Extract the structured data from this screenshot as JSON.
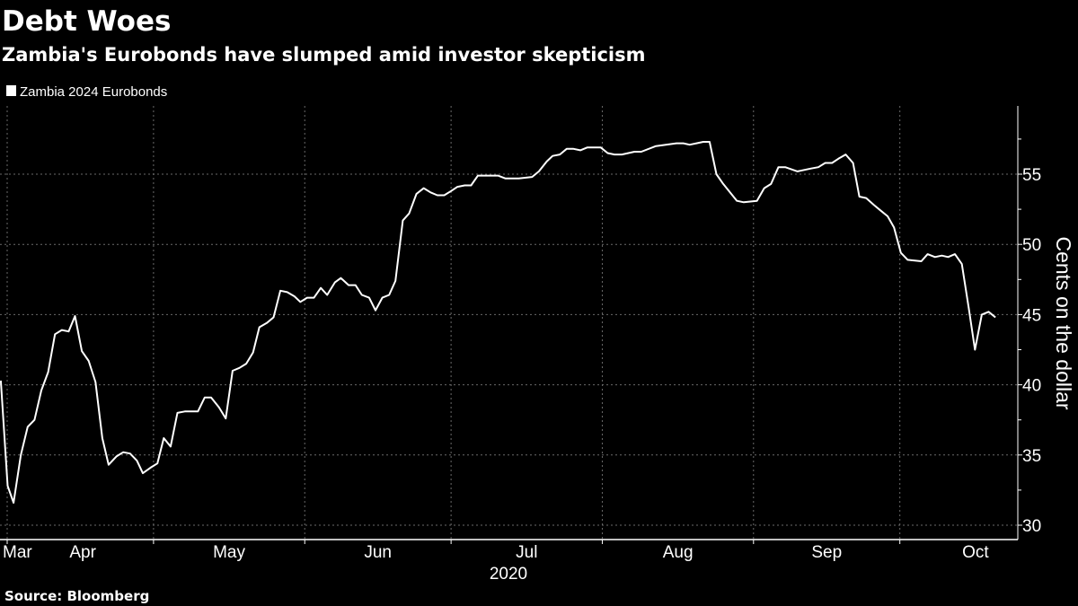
{
  "chart_data": {
    "type": "line",
    "title": "Debt Woes",
    "subtitle": "Zambia's Eurobonds have slumped amid investor skepticism",
    "legend": [
      "Zambia 2024 Eurobonds"
    ],
    "legend_position": "top-left",
    "ylabel": "Cents on the dollar",
    "xlabel": "2020",
    "ylim": [
      29,
      60
    ],
    "y_ticks": [
      30,
      35,
      40,
      45,
      50,
      55
    ],
    "y_minor_ticks": [
      32.5,
      37.5,
      42.5,
      47.5,
      52.5,
      57.5
    ],
    "grid": true,
    "x_unit_note_days_from_apr1": true,
    "x_ticks": [
      {
        "label": "Mar",
        "day": -14
      },
      {
        "label": "Apr",
        "day": 15.5
      },
      {
        "label": "May",
        "day": 45.5
      },
      {
        "label": "Jun",
        "day": 76
      },
      {
        "label": "Jul",
        "day": 106.5
      },
      {
        "label": "Aug",
        "day": 137.5
      },
      {
        "label": "Sep",
        "day": 168
      },
      {
        "label": "Oct",
        "day": 198.5
      }
    ],
    "month_boundaries": [
      0,
      30,
      61,
      91,
      122,
      153,
      183
    ],
    "series": [
      {
        "name": "Zambia 2024 Eurobonds",
        "color": "#ffffff",
        "points": [
          [
            -1.3,
            40.3
          ],
          [
            0.1,
            32.8
          ],
          [
            1.3,
            31.6
          ],
          [
            2.8,
            35.0
          ],
          [
            4.2,
            37.0
          ],
          [
            5.6,
            37.5
          ],
          [
            7.0,
            39.6
          ],
          [
            8.4,
            40.9
          ],
          [
            9.8,
            43.6
          ],
          [
            11.2,
            43.9
          ],
          [
            12.6,
            43.8
          ],
          [
            13.9,
            44.9
          ],
          [
            15.3,
            42.4
          ],
          [
            16.7,
            41.7
          ],
          [
            18.1,
            40.2
          ],
          [
            19.5,
            36.2
          ],
          [
            20.8,
            34.3
          ],
          [
            22.4,
            34.9
          ],
          [
            23.8,
            35.2
          ],
          [
            25.2,
            35.1
          ],
          [
            26.6,
            34.6
          ],
          [
            27.8,
            33.7
          ],
          [
            29.4,
            34.1
          ],
          [
            30.8,
            34.4
          ],
          [
            32.1,
            36.2
          ],
          [
            33.5,
            35.6
          ],
          [
            34.9,
            38.0
          ],
          [
            36.4,
            38.1
          ],
          [
            39.1,
            38.1
          ],
          [
            40.5,
            39.1
          ],
          [
            41.8,
            39.1
          ],
          [
            43.4,
            38.4
          ],
          [
            44.8,
            37.6
          ],
          [
            46.2,
            41.0
          ],
          [
            47.6,
            41.2
          ],
          [
            49.0,
            41.5
          ],
          [
            50.4,
            42.3
          ],
          [
            51.7,
            44.1
          ],
          [
            53.2,
            44.4
          ],
          [
            54.6,
            44.8
          ],
          [
            56.0,
            46.7
          ],
          [
            57.4,
            46.6
          ],
          [
            58.9,
            46.3
          ],
          [
            60.1,
            45.9
          ],
          [
            61.5,
            46.2
          ],
          [
            62.9,
            46.2
          ],
          [
            64.3,
            46.9
          ],
          [
            65.6,
            46.4
          ],
          [
            67.2,
            47.3
          ],
          [
            68.4,
            47.6
          ],
          [
            70.0,
            47.1
          ],
          [
            71.4,
            47.1
          ],
          [
            72.7,
            46.4
          ],
          [
            74.2,
            46.2
          ],
          [
            75.5,
            45.3
          ],
          [
            76.9,
            46.2
          ],
          [
            78.3,
            46.4
          ],
          [
            79.6,
            47.4
          ],
          [
            81.1,
            51.7
          ],
          [
            82.4,
            52.2
          ],
          [
            83.9,
            53.6
          ],
          [
            85.4,
            54.0
          ],
          [
            86.8,
            53.7
          ],
          [
            88.2,
            53.5
          ],
          [
            89.6,
            53.5
          ],
          [
            91.0,
            53.8
          ],
          [
            92.3,
            54.1
          ],
          [
            93.8,
            54.2
          ],
          [
            95.1,
            54.2
          ],
          [
            96.5,
            54.9
          ],
          [
            100.6,
            54.9
          ],
          [
            102.1,
            54.7
          ],
          [
            103.5,
            54.7
          ],
          [
            104.9,
            54.7
          ],
          [
            107.6,
            54.8
          ],
          [
            109.0,
            55.2
          ],
          [
            110.6,
            55.9
          ],
          [
            111.8,
            56.3
          ],
          [
            113.3,
            56.4
          ],
          [
            114.7,
            56.8
          ],
          [
            116.1,
            56.8
          ],
          [
            117.5,
            56.7
          ],
          [
            118.9,
            56.9
          ],
          [
            121.7,
            56.9
          ],
          [
            123.1,
            56.5
          ],
          [
            124.5,
            56.4
          ],
          [
            126.0,
            56.4
          ],
          [
            128.6,
            56.6
          ],
          [
            130.0,
            56.6
          ],
          [
            133.0,
            57.0
          ],
          [
            137.2,
            57.2
          ],
          [
            138.6,
            57.2
          ],
          [
            139.9,
            57.1
          ],
          [
            141.3,
            57.2
          ],
          [
            142.7,
            57.3
          ],
          [
            144.0,
            57.3
          ],
          [
            145.4,
            55.0
          ],
          [
            146.8,
            54.3
          ],
          [
            149.6,
            53.1
          ],
          [
            151.0,
            53.0
          ],
          [
            153.7,
            53.1
          ],
          [
            155.2,
            54.0
          ],
          [
            156.6,
            54.3
          ],
          [
            158.1,
            55.5
          ],
          [
            159.5,
            55.5
          ],
          [
            162.0,
            55.2
          ],
          [
            164.8,
            55.4
          ],
          [
            166.3,
            55.5
          ],
          [
            167.7,
            55.8
          ],
          [
            169.1,
            55.8
          ],
          [
            170.4,
            56.1
          ],
          [
            171.9,
            56.4
          ],
          [
            173.4,
            55.8
          ],
          [
            174.7,
            53.4
          ],
          [
            176.1,
            53.3
          ],
          [
            177.7,
            52.8
          ],
          [
            179.1,
            52.4
          ],
          [
            180.5,
            52.0
          ],
          [
            181.8,
            51.2
          ],
          [
            183.2,
            49.4
          ],
          [
            184.6,
            48.9
          ],
          [
            187.4,
            48.8
          ],
          [
            188.7,
            49.3
          ],
          [
            190.2,
            49.1
          ],
          [
            191.6,
            49.2
          ],
          [
            192.9,
            49.1
          ],
          [
            194.3,
            49.3
          ],
          [
            195.7,
            48.6
          ],
          [
            197.1,
            45.5
          ],
          [
            198.4,
            42.5
          ],
          [
            199.8,
            45.0
          ],
          [
            201.2,
            45.2
          ],
          [
            202.6,
            44.8
          ]
        ]
      }
    ],
    "source": "Source: Bloomberg"
  }
}
